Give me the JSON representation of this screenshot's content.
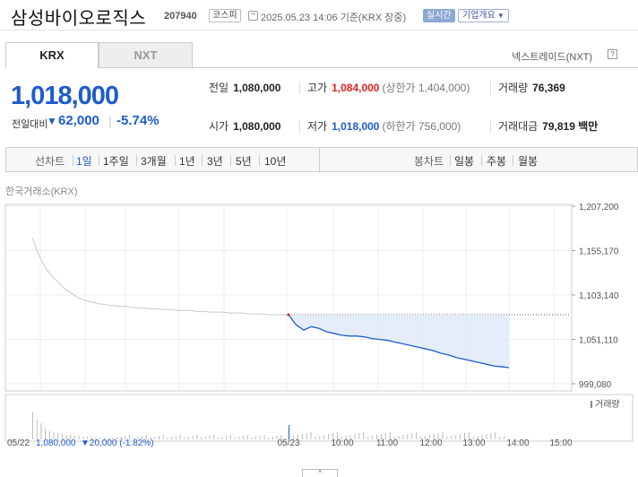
{
  "header": {
    "company": "삼성바이오로직스",
    "code": "207940",
    "market": "코스피",
    "datetime": "2025.05.23 14:06 기준(KRX 장중)",
    "live_label": "실시간",
    "corp_info_label": "기업개요"
  },
  "tabs": {
    "krx": "KRX",
    "nxt": "NXT",
    "nxt_rate": "넥스트레이드(NXT)",
    "help": "?"
  },
  "summary": {
    "price": "1,018,000",
    "change_label": "전일대비",
    "change": "62,000",
    "change_pct": "-5.74%",
    "prev_close_label": "전일",
    "prev_close": "1,080,000",
    "high_label": "고가",
    "high": "1,084,000",
    "upper_limit": "(상한가 1,404,000)",
    "volume_label": "거래량",
    "volume": "76,369",
    "open_label": "시가",
    "open": "1,080,000",
    "low_label": "저가",
    "low": "1,018,000",
    "lower_limit": "(하한가 756,000)",
    "value_label": "거래대금",
    "value": "79,819 백만"
  },
  "period_bar": {
    "line_label": "선차트",
    "periods": [
      "1일",
      "1주일",
      "3개월",
      "1년",
      "3년",
      "5년",
      "10년"
    ],
    "candle_label": "봉차트",
    "candles": [
      "일봉",
      "주봉",
      "월봉"
    ]
  },
  "exchange_label": "한국거래소(KRX)",
  "volume_legend": "거래량",
  "footer": "05/22  1,080,000 ▼20,000 (-1.82%)",
  "footer_date": "05/22",
  "footer_close": "1,080,000",
  "footer_change": "▼20,000 (-1.82%)",
  "colors": {
    "up": "#e0231c",
    "down": "#1e5ccc",
    "prev_line": "#c8c8c8",
    "fill": "#dde9f8"
  },
  "chart_data": {
    "type": "line",
    "y_ticks": [
      "1,207,200",
      "1,155,170",
      "1,103,140",
      "1,051,110",
      "999,080"
    ],
    "y_tick_values": [
      1207200,
      1155170,
      1103140,
      1051110,
      999080
    ],
    "x_ticks": [
      "05/22",
      "05/23",
      "10:00",
      "11:00",
      "12:00",
      "13:00",
      "14:00",
      "15:00"
    ],
    "reference_price": 1080000,
    "series": [
      {
        "values": [
          1170000,
          1150000,
          1135000,
          1125000,
          1118000,
          1110000,
          1105000,
          1100000,
          1097000,
          1095000,
          1093000,
          1092000,
          1091000,
          1090000,
          1090000,
          1089000,
          1088000,
          1088000,
          1087000,
          1087000,
          1086000,
          1086000,
          1085000,
          1085000,
          1085000,
          1084000,
          1084000,
          1083000,
          1083000,
          1083000,
          1082000,
          1082000,
          1082000,
          1081000,
          1081000,
          1081000,
          1080000,
          1080000,
          1080000,
          1080000
        ]
      },
      {
        "values": [
          1080000,
          1068000,
          1062000,
          1066000,
          1064000,
          1060000,
          1058000,
          1056000,
          1055000,
          1055000,
          1054000,
          1052000,
          1051000,
          1050000,
          1048000,
          1046000,
          1044000,
          1042000,
          1040000,
          1038000,
          1035000,
          1033000,
          1030000,
          1028000,
          1026000,
          1024000,
          1022000,
          1020000,
          1019000,
          1018000
        ]
      }
    ]
  }
}
